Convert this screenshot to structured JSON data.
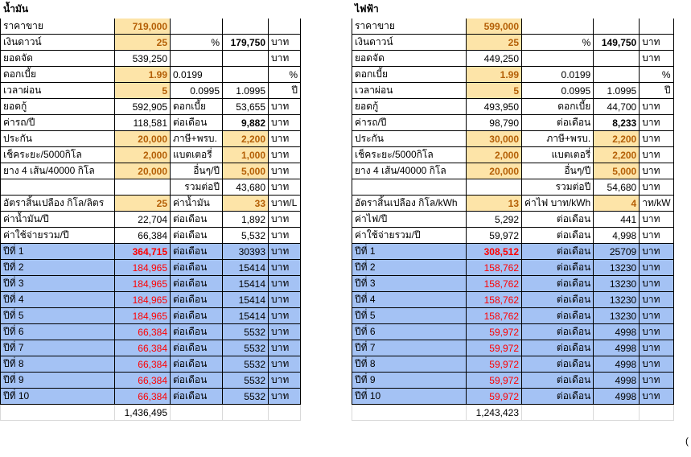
{
  "oil": {
    "title": "น้ำมัน",
    "rows": [
      [
        "ราคาขาย",
        "719,000",
        "",
        "",
        ""
      ],
      [
        "เงินดาวน์",
        "25",
        "%",
        "179,750",
        "บาท"
      ],
      [
        "ยอดจัด",
        "539,250",
        "",
        "",
        "บาท"
      ],
      [
        "ดอกเบี้ย",
        "1.99",
        "0.0199",
        "",
        "%"
      ],
      [
        "เวลาผ่อน",
        "5",
        "0.0995",
        "1.0995",
        "ปี"
      ],
      [
        "ยอดกู้",
        "592,905",
        "ดอกเบี้ย",
        "53,655",
        "บาท"
      ],
      [
        "ค่ารถ/ปี",
        "118,581",
        "ต่อเดือน",
        "9,882",
        "บาท"
      ],
      [
        "ประกัน",
        "20,000",
        "ภาษี+พรบ.",
        "2,200",
        "บาท"
      ],
      [
        "เช็คระยะ/5000กิโล",
        "2,000",
        "แบตเตอรี่",
        "1,000",
        "บาท"
      ],
      [
        "ยาง 4 เส้น/40000 กิโล",
        "20,000",
        "อื่นๆ/ปี",
        "5,000",
        "บาท"
      ],
      [
        "",
        "",
        "รวมต่อปี",
        "43,680",
        "บาท"
      ],
      [
        "อัตราสิ้นเปลือง กิโล/ลิตร",
        "25",
        "ค่าน้ำมัน",
        "33",
        "บาท/L"
      ],
      [
        "ค่าน้ำมัน/ปี",
        "22,704",
        "ต่อเดือน",
        "1,892",
        "บาท"
      ],
      [
        "ค่าใช้จ่ายรวม/ปี",
        "66,384",
        "ต่อเดือน",
        "5,532",
        "บาท"
      ]
    ],
    "years": [
      [
        "ปีที่ 1",
        "364,715",
        "ต่อเดือน",
        "30393",
        "บาท"
      ],
      [
        "ปีที่ 2",
        "184,965",
        "ต่อเดือน",
        "15414",
        "บาท"
      ],
      [
        "ปีที่ 3",
        "184,965",
        "ต่อเดือน",
        "15414",
        "บาท"
      ],
      [
        "ปีที่ 4",
        "184,965",
        "ต่อเดือน",
        "15414",
        "บาท"
      ],
      [
        "ปีที่ 5",
        "184,965",
        "ต่อเดือน",
        "15414",
        "บาท"
      ],
      [
        "ปีที่ 6",
        "66,384",
        "ต่อเดือน",
        "5532",
        "บาท"
      ],
      [
        "ปีที่ 7",
        "66,384",
        "ต่อเดือน",
        "5532",
        "บาท"
      ],
      [
        "ปีที่ 8",
        "66,384",
        "ต่อเดือน",
        "5532",
        "บาท"
      ],
      [
        "ปีที่ 9",
        "66,384",
        "ต่อเดือน",
        "5532",
        "บาท"
      ],
      [
        "ปีที่ 10",
        "66,384",
        "ต่อเดือน",
        "5532",
        "บาท"
      ]
    ],
    "total": "1,436,495"
  },
  "elec": {
    "title": "ไฟฟ้า",
    "rows": [
      [
        "ราคาขาย",
        "599,000",
        "",
        "",
        ""
      ],
      [
        "เงินดาวน์",
        "25",
        "%",
        "149,750",
        "บาท"
      ],
      [
        "ยอดจัด",
        "449,250",
        "",
        "",
        "บาท"
      ],
      [
        "ดอกเบี้ย",
        "1.99",
        "0.0199",
        "",
        "%"
      ],
      [
        "เวลาผ่อน",
        "5",
        "0.0995",
        "1.0995",
        "ปี"
      ],
      [
        "ยอดกู้",
        "493,950",
        "ดอกเบี้ย",
        "44,700",
        "บาท"
      ],
      [
        "ค่ารถ/ปี",
        "98,790",
        "ต่อเดือน",
        "8,233",
        "บาท"
      ],
      [
        "ประกัน",
        "30,000",
        "ภาษี+พรบ.",
        "2,200",
        "บาท"
      ],
      [
        "เช็คระยะ/5000กิโล",
        "2,000",
        "แบตเตอรี่",
        "2,200",
        "บาท"
      ],
      [
        "ยาง 4 เส้น/40000 กิโล",
        "20,000",
        "อื่นๆ/ปี",
        "5,000",
        "บาท"
      ],
      [
        "",
        "",
        "รวมต่อปี",
        "54,680",
        "บาท"
      ],
      [
        "อัตราสิ้นเปลือง กิโล/kWh",
        "13",
        "ค่าไฟ บาท/kWh",
        "4",
        "าท/kW"
      ],
      [
        "ค่าไฟ/ปี",
        "5,292",
        "ต่อเดือน",
        "441",
        "บาท"
      ],
      [
        "ค่าใช้จ่ายรวม/ปี",
        "59,972",
        "ต่อเดือน",
        "4,998",
        "บาท"
      ]
    ],
    "years": [
      [
        "ปีที่ 1",
        "308,512",
        "ต่อเดือน",
        "25709",
        "บาท"
      ],
      [
        "ปีที่ 2",
        "158,762",
        "ต่อเดือน",
        "13230",
        "บาท"
      ],
      [
        "ปีที่ 3",
        "158,762",
        "ต่อเดือน",
        "13230",
        "บาท"
      ],
      [
        "ปีที่ 4",
        "158,762",
        "ต่อเดือน",
        "13230",
        "บาท"
      ],
      [
        "ปีที่ 5",
        "158,762",
        "ต่อเดือน",
        "13230",
        "บาท"
      ],
      [
        "ปีที่ 6",
        "59,972",
        "ต่อเดือน",
        "4998",
        "บาท"
      ],
      [
        "ปีที่ 7",
        "59,972",
        "ต่อเดือน",
        "4998",
        "บาท"
      ],
      [
        "ปีที่ 8",
        "59,972",
        "ต่อเดือน",
        "4998",
        "บาท"
      ],
      [
        "ปีที่ 9",
        "59,972",
        "ต่อเดือน",
        "4998",
        "บาท"
      ],
      [
        "ปีที่ 10",
        "59,972",
        "ต่อเดือน",
        "4998",
        "บาท"
      ]
    ],
    "total": "1,243,423"
  },
  "overflow_text": "(",
  "colors": {
    "input_fill": "#fde4a8",
    "input_text": "#b45f06",
    "year_fill": "#a4c2f4",
    "year_value_text": "#ff0000"
  }
}
